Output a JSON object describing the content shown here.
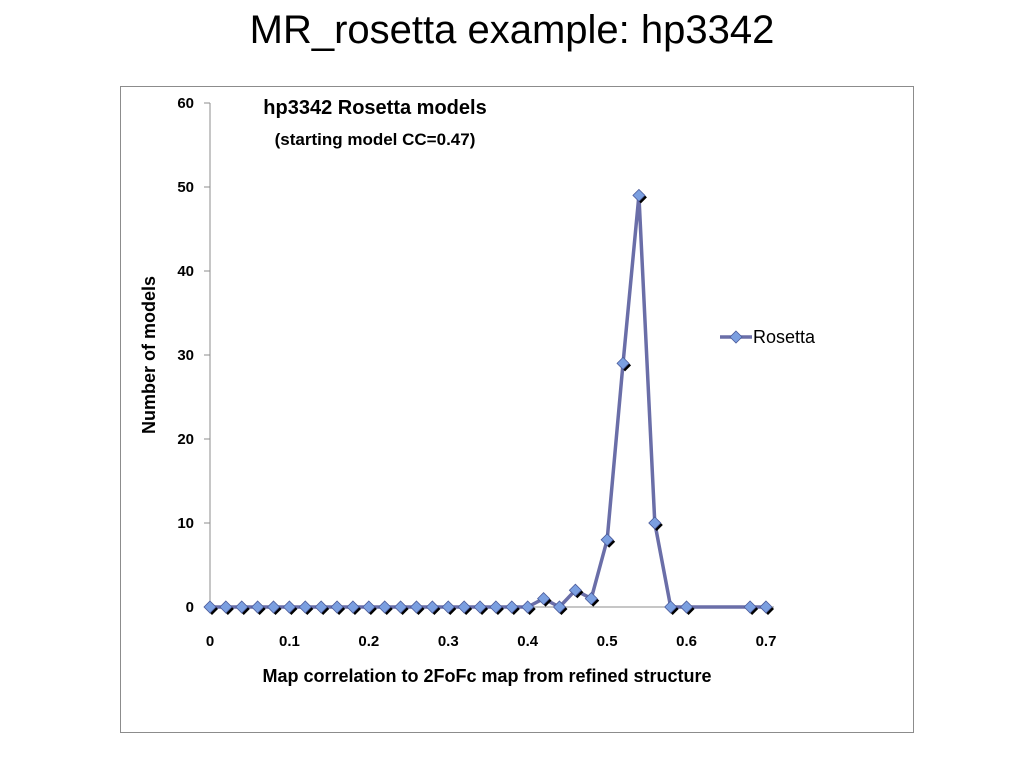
{
  "slide": {
    "title": "MR_rosetta example: hp3342"
  },
  "chart_data": {
    "type": "line",
    "title": "hp3342 Rosetta models",
    "subtitle": "(starting model CC=0.47)",
    "xlabel": "Map correlation to 2FoFc map from refined structure",
    "ylabel": "Number of models",
    "xlim": [
      0,
      0.7
    ],
    "ylim": [
      0,
      60
    ],
    "xticks": [
      "0",
      "0.1",
      "0.2",
      "0.3",
      "0.4",
      "0.5",
      "0.6",
      "0.7"
    ],
    "yticks": [
      "0",
      "10",
      "20",
      "30",
      "40",
      "50",
      "60"
    ],
    "grid": false,
    "legend_position": "right",
    "series": [
      {
        "name": "Rosetta",
        "color": "#6a6ea8",
        "marker_color": "#7b9fe0",
        "marker": "diamond",
        "x": [
          0,
          0.02,
          0.04,
          0.06,
          0.08,
          0.1,
          0.12,
          0.14,
          0.16,
          0.18,
          0.2,
          0.22,
          0.24,
          0.26,
          0.28,
          0.3,
          0.32,
          0.34,
          0.36,
          0.38,
          0.4,
          0.42,
          0.44,
          0.46,
          0.48,
          0.5,
          0.52,
          0.54,
          0.56,
          0.58,
          0.6,
          0.68,
          0.7
        ],
        "y": [
          0,
          0,
          0,
          0,
          0,
          0,
          0,
          0,
          0,
          0,
          0,
          0,
          0,
          0,
          0,
          0,
          0,
          0,
          0,
          0,
          0,
          1,
          0,
          2,
          1,
          8,
          29,
          49,
          10,
          0,
          0,
          0,
          0
        ]
      }
    ]
  }
}
